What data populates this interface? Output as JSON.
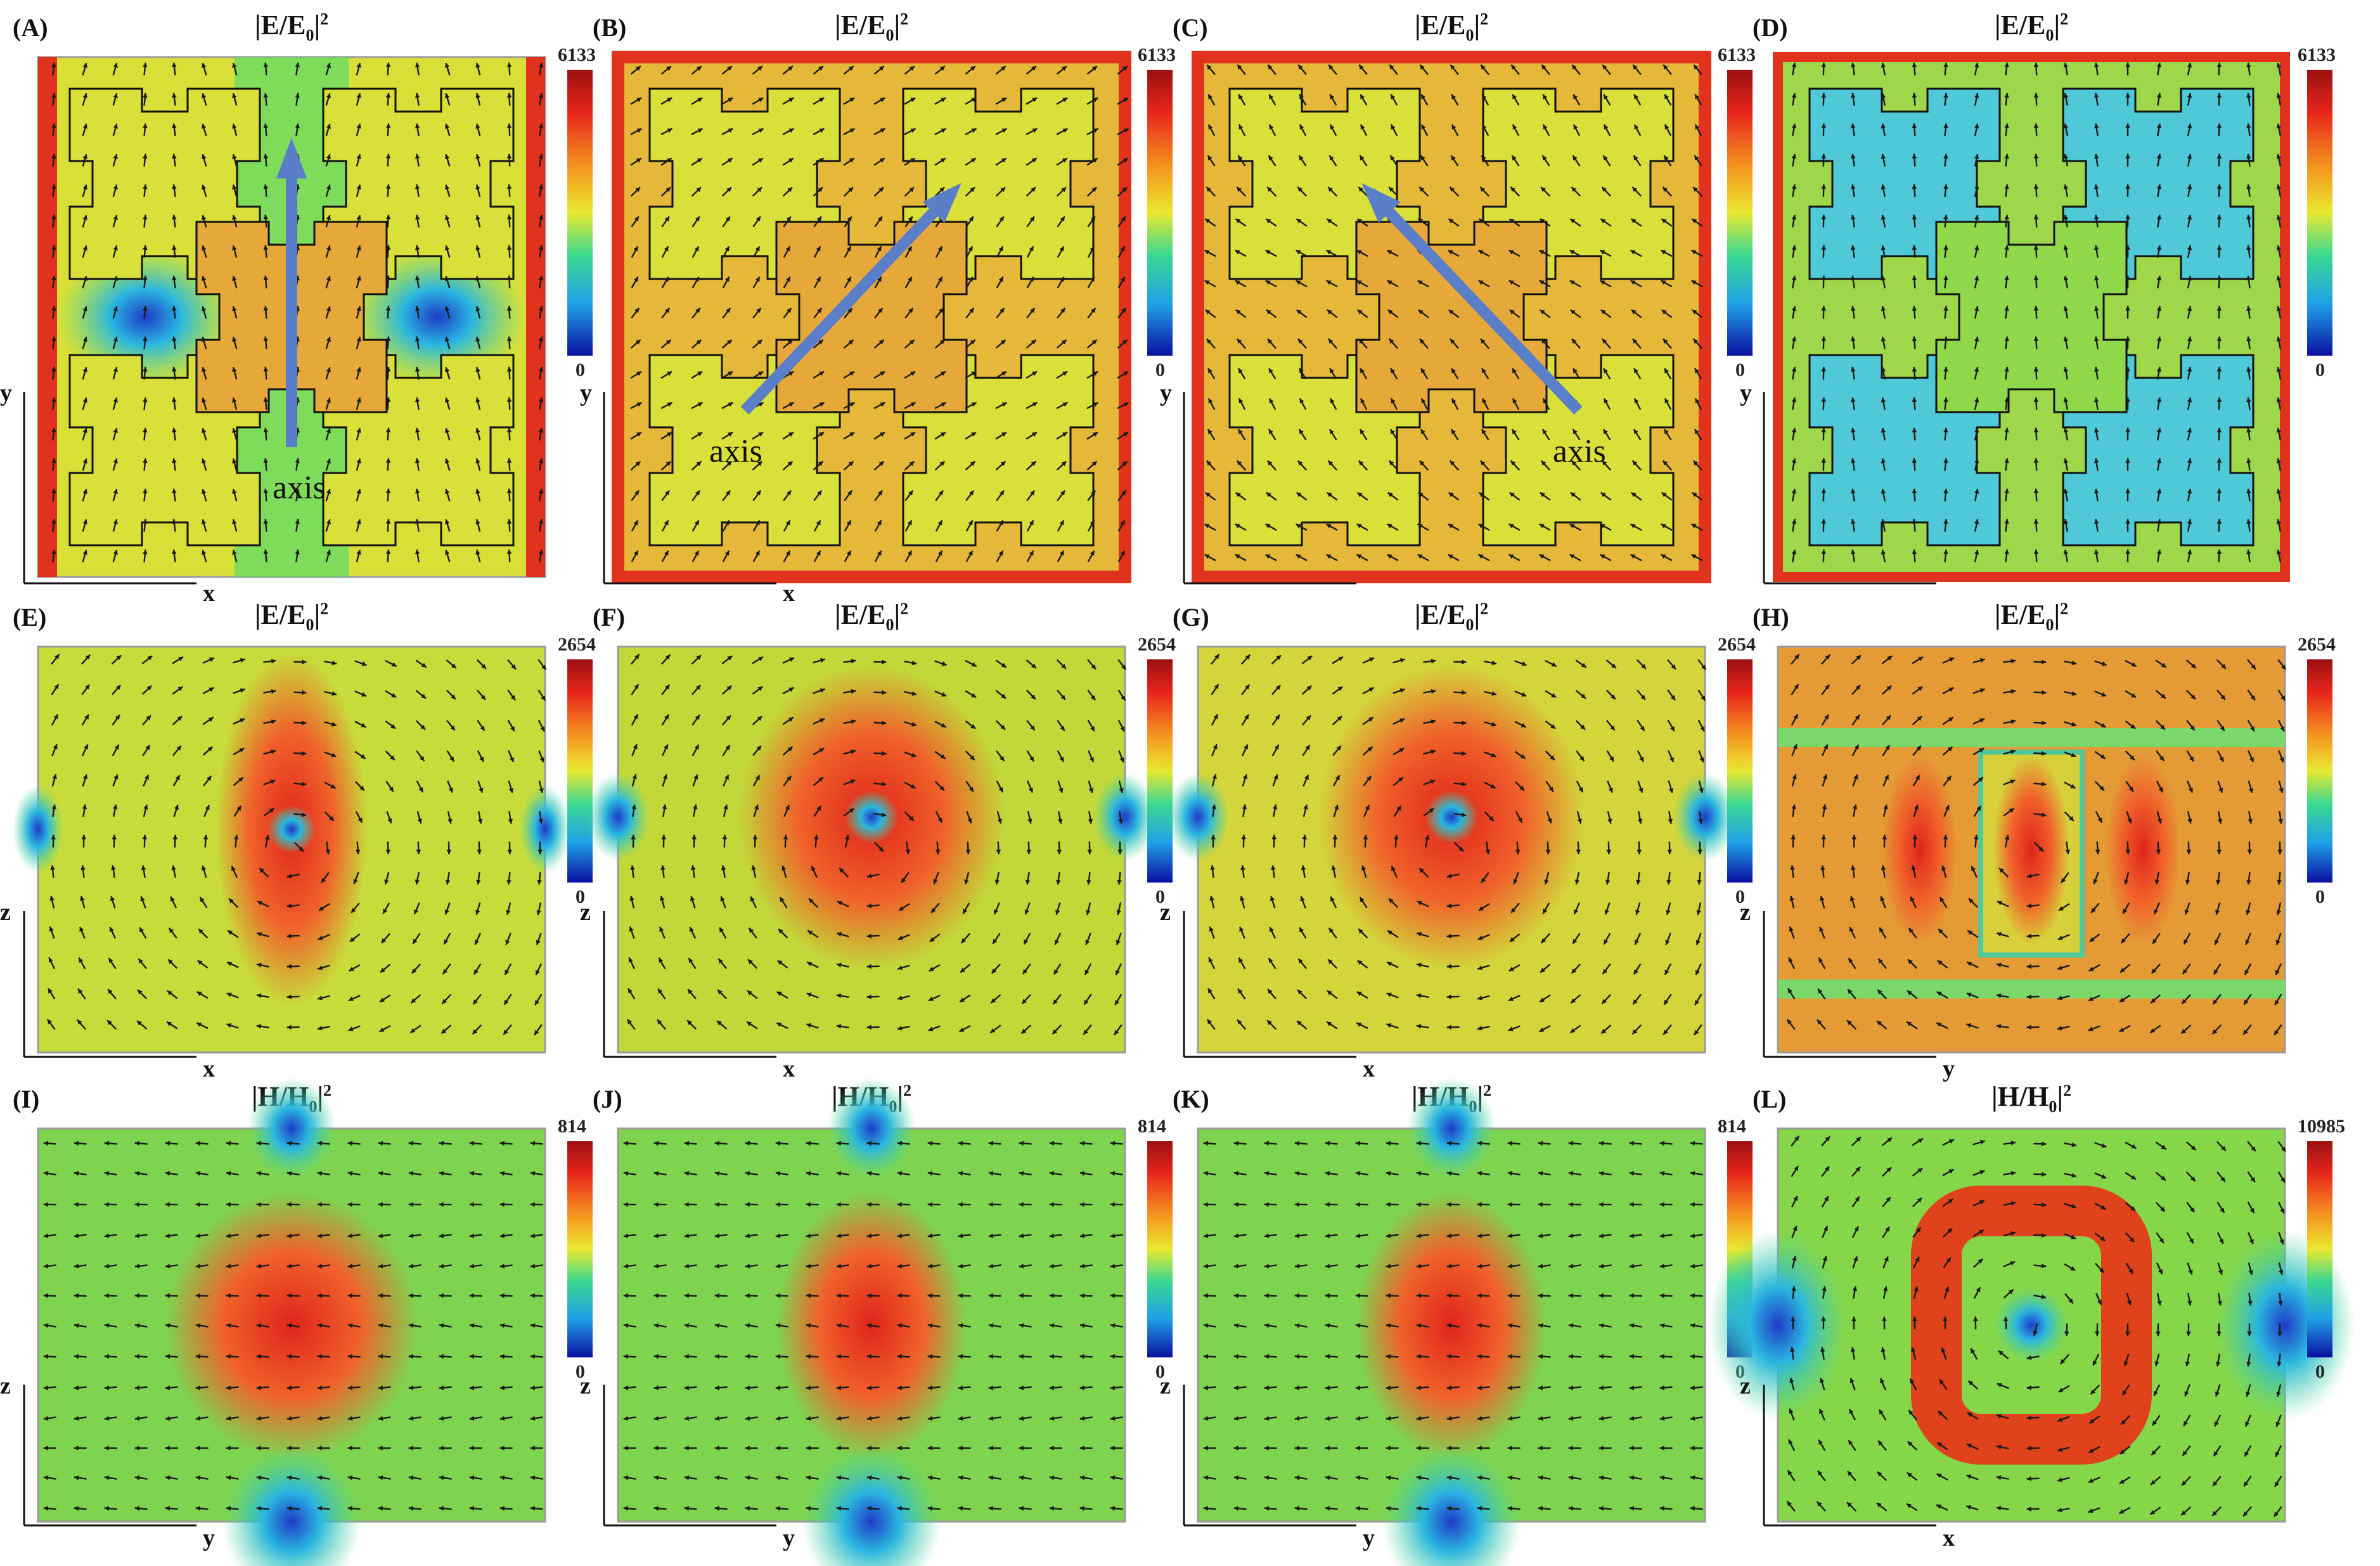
{
  "panels": [
    {
      "label": "(A)",
      "quantity": "E",
      "cbmax": "6133",
      "cbmin": "0",
      "axis_h": "x",
      "axis_v": "y",
      "kind": "A",
      "annotation": "axis",
      "accent": "#5a7fc8"
    },
    {
      "label": "(B)",
      "quantity": "E",
      "cbmax": "6133",
      "cbmin": "0",
      "axis_h": "x",
      "axis_v": "y",
      "kind": "B",
      "annotation": "axis",
      "accent": "#5a7fc8"
    },
    {
      "label": "(C)",
      "quantity": "E",
      "cbmax": "6133",
      "cbmin": "0",
      "axis_h": "",
      "axis_v": "y",
      "kind": "C",
      "annotation": "axis",
      "accent": "#5a7fc8"
    },
    {
      "label": "(D)",
      "quantity": "E",
      "cbmax": "6133",
      "cbmin": "0",
      "axis_h": "",
      "axis_v": "y",
      "kind": "D",
      "annotation": ""
    },
    {
      "label": "(E)",
      "quantity": "E",
      "cbmax": "2654",
      "cbmin": "0",
      "axis_h": "x",
      "axis_v": "z",
      "kind": "E",
      "annotation": ""
    },
    {
      "label": "(F)",
      "quantity": "E",
      "cbmax": "2654",
      "cbmin": "0",
      "axis_h": "x",
      "axis_v": "z",
      "kind": "F",
      "annotation": ""
    },
    {
      "label": "(G)",
      "quantity": "E",
      "cbmax": "2654",
      "cbmin": "0",
      "axis_h": "x",
      "axis_v": "z",
      "kind": "G",
      "annotation": ""
    },
    {
      "label": "(H)",
      "quantity": "E",
      "cbmax": "2654",
      "cbmin": "0",
      "axis_h": "y",
      "axis_v": "z",
      "kind": "H",
      "annotation": ""
    },
    {
      "label": "(I)",
      "quantity": "H",
      "cbmax": "814",
      "cbmin": "0",
      "axis_h": "y",
      "axis_v": "z",
      "kind": "I",
      "annotation": ""
    },
    {
      "label": "(J)",
      "quantity": "H",
      "cbmax": "814",
      "cbmin": "0",
      "axis_h": "y",
      "axis_v": "z",
      "kind": "J",
      "annotation": ""
    },
    {
      "label": "(K)",
      "quantity": "H",
      "cbmax": "814",
      "cbmin": "0",
      "axis_h": "y",
      "axis_v": "z",
      "kind": "K",
      "annotation": ""
    },
    {
      "label": "(L)",
      "quantity": "H",
      "cbmax": "10985",
      "cbmin": "0",
      "axis_h": "x",
      "axis_v": "z",
      "kind": "L",
      "annotation": ""
    }
  ]
}
